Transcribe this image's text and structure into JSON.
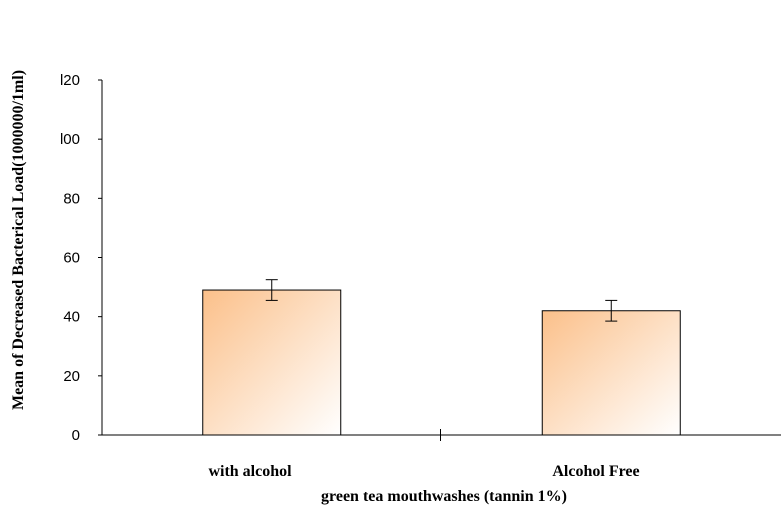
{
  "chart_data": {
    "type": "bar",
    "categories": [
      "with alcohol",
      "Alcohol Free"
    ],
    "values": [
      49,
      42
    ],
    "error": [
      3.5,
      3.5
    ],
    "title": "",
    "xlabel": "green tea mouthwashes (tannin 1%)",
    "ylabel": "Mean of Decreased Bacterical Load(1000000/1ml)",
    "ylim": [
      0,
      120
    ],
    "yticks": [
      0,
      20,
      40,
      60,
      80,
      100,
      120
    ],
    "ytick_labels": [
      "0",
      "20",
      "40",
      "60",
      "80",
      "l00",
      "l20"
    ],
    "grid": false,
    "colors": {
      "bar_from": "#fbc08a",
      "bar_to": "#ffffff",
      "axis": "#000000"
    }
  }
}
